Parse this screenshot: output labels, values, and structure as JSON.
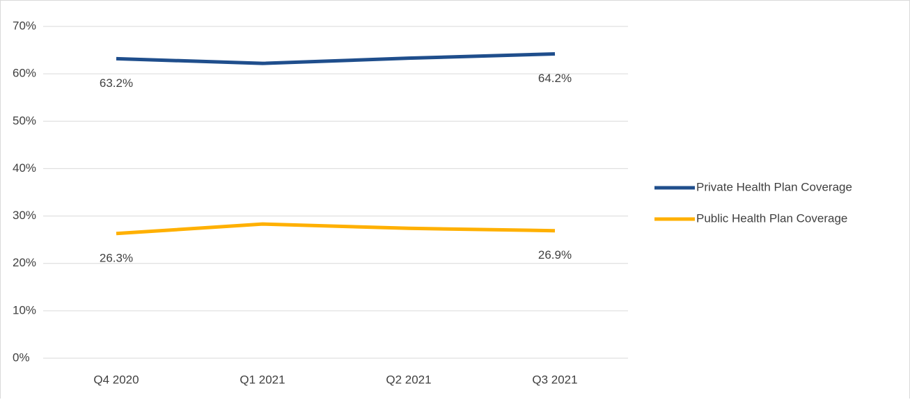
{
  "chart_data": {
    "type": "line",
    "categories": [
      "Q4 2020",
      "Q1 2021",
      "Q2 2021",
      "Q3 2021"
    ],
    "series": [
      {
        "name": "Private Health Plan Coverage",
        "color": "#1f4e8c",
        "values": [
          63.2,
          62.2,
          63.3,
          64.2
        ],
        "value_labels": [
          "63.2%",
          null,
          null,
          "64.2%"
        ]
      },
      {
        "name": "Public Health Plan Coverage",
        "color": "#ffb000",
        "values": [
          26.3,
          28.3,
          27.4,
          26.9
        ],
        "value_labels": [
          "26.3%",
          null,
          null,
          "26.9%"
        ]
      }
    ],
    "ylim": [
      0,
      70
    ],
    "yticks": [
      {
        "value": 0,
        "label": "0%"
      },
      {
        "value": 10,
        "label": "10%"
      },
      {
        "value": 20,
        "label": "20%"
      },
      {
        "value": 30,
        "label": "30%"
      },
      {
        "value": 40,
        "label": "40%"
      },
      {
        "value": 50,
        "label": "50%"
      },
      {
        "value": 60,
        "label": "60%"
      },
      {
        "value": 70,
        "label": "70%"
      }
    ],
    "grid": true,
    "legend": "right"
  }
}
